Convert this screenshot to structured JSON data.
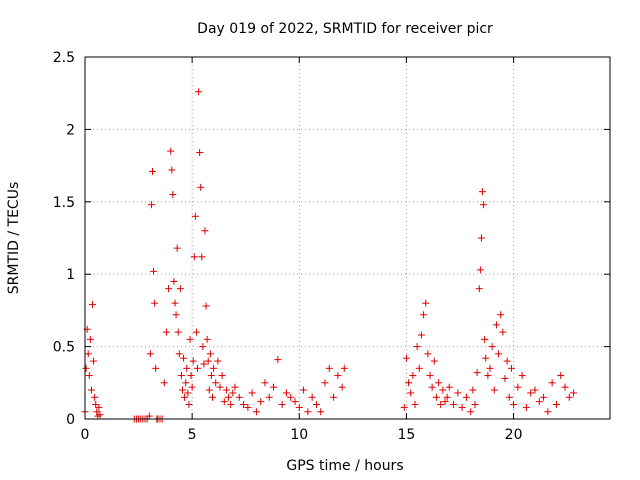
{
  "chart_data": {
    "type": "scatter",
    "title": "Day 019 of 2022, SRMTID for receiver picr",
    "xlabel": "GPS time / hours",
    "ylabel": "SRMTID / TECUs",
    "xlim": [
      0,
      24.5
    ],
    "ylim": [
      0,
      2.5
    ],
    "xticks": [
      0,
      5,
      10,
      15,
      20
    ],
    "xtick_labels": [
      "0",
      "5",
      "10",
      "15",
      "20"
    ],
    "yticks": [
      0,
      0.5,
      1,
      1.5,
      2,
      2.5
    ],
    "ytick_labels": [
      "0",
      "0.5",
      "1",
      "1.5",
      "2",
      "2.5"
    ],
    "grid": true,
    "marker": "+",
    "colors": {
      "marker": "#dd0000",
      "grid": "#a0a0a0",
      "frame": "#000000"
    },
    "series": [
      {
        "name": "SRMTID",
        "x": [
          0.0,
          0.05,
          0.1,
          0.15,
          0.2,
          0.25,
          0.3,
          0.35,
          0.4,
          0.45,
          0.5,
          0.55,
          0.6,
          0.65,
          0.7,
          2.3,
          2.4,
          2.5,
          2.6,
          2.7,
          2.8,
          2.9,
          3.0,
          3.05,
          3.1,
          3.15,
          3.2,
          3.25,
          3.3,
          3.35,
          3.4,
          3.5,
          3.6,
          3.7,
          3.8,
          3.9,
          4.0,
          4.05,
          4.1,
          4.15,
          4.2,
          4.25,
          4.3,
          4.35,
          4.4,
          4.45,
          4.5,
          4.55,
          4.6,
          4.65,
          4.7,
          4.75,
          4.8,
          4.85,
          4.9,
          4.95,
          5.0,
          5.05,
          5.1,
          5.15,
          5.2,
          5.25,
          5.3,
          5.35,
          5.4,
          5.45,
          5.5,
          5.55,
          5.6,
          5.65,
          5.7,
          5.75,
          5.8,
          5.85,
          5.9,
          5.95,
          6.0,
          6.1,
          6.2,
          6.3,
          6.4,
          6.5,
          6.6,
          6.7,
          6.8,
          6.9,
          7.0,
          7.2,
          7.4,
          7.6,
          7.8,
          8.0,
          8.2,
          8.4,
          8.6,
          8.8,
          9.0,
          9.2,
          9.4,
          9.6,
          9.8,
          10.0,
          10.2,
          10.4,
          10.6,
          10.8,
          11.0,
          11.2,
          11.4,
          11.6,
          11.8,
          12.0,
          12.1,
          14.9,
          15.0,
          15.1,
          15.2,
          15.3,
          15.4,
          15.5,
          15.6,
          15.7,
          15.8,
          15.9,
          16.0,
          16.1,
          16.2,
          16.3,
          16.4,
          16.5,
          16.6,
          16.7,
          16.8,
          16.9,
          17.0,
          17.2,
          17.4,
          17.6,
          17.8,
          18.0,
          18.1,
          18.2,
          18.3,
          18.4,
          18.45,
          18.5,
          18.55,
          18.6,
          18.65,
          18.7,
          18.8,
          18.9,
          19.0,
          19.1,
          19.2,
          19.3,
          19.4,
          19.5,
          19.6,
          19.7,
          19.8,
          19.9,
          20.0,
          20.2,
          20.4,
          20.6,
          20.8,
          21.0,
          21.2,
          21.4,
          21.6,
          21.8,
          22.0,
          22.2,
          22.4,
          22.6,
          22.8
        ],
        "y": [
          0.05,
          0.35,
          0.62,
          0.45,
          0.3,
          0.55,
          0.2,
          0.79,
          0.4,
          0.15,
          0.1,
          0.05,
          0.02,
          0.08,
          0.03,
          0.0,
          0.0,
          0.0,
          0.0,
          0.0,
          0.0,
          0.0,
          0.02,
          0.45,
          1.48,
          1.71,
          1.02,
          0.8,
          0.35,
          0.0,
          0.0,
          0.0,
          0.0,
          0.25,
          0.6,
          0.9,
          1.85,
          1.72,
          1.55,
          0.95,
          0.8,
          0.72,
          1.18,
          0.6,
          0.45,
          0.9,
          0.3,
          0.2,
          0.42,
          0.15,
          0.25,
          0.35,
          0.18,
          0.1,
          0.55,
          0.3,
          0.22,
          0.4,
          1.12,
          1.4,
          0.6,
          0.35,
          2.26,
          1.84,
          1.6,
          1.12,
          0.5,
          0.38,
          1.3,
          0.78,
          0.55,
          0.4,
          0.2,
          0.45,
          0.3,
          0.15,
          0.35,
          0.25,
          0.4,
          0.22,
          0.3,
          0.12,
          0.2,
          0.15,
          0.1,
          0.18,
          0.22,
          0.15,
          0.1,
          0.08,
          0.18,
          0.05,
          0.12,
          0.25,
          0.15,
          0.22,
          0.41,
          0.1,
          0.18,
          0.15,
          0.12,
          0.08,
          0.2,
          0.05,
          0.15,
          0.1,
          0.05,
          0.25,
          0.35,
          0.15,
          0.3,
          0.22,
          0.35,
          0.08,
          0.42,
          0.25,
          0.18,
          0.3,
          0.1,
          0.5,
          0.35,
          0.58,
          0.72,
          0.8,
          0.45,
          0.3,
          0.22,
          0.4,
          0.15,
          0.25,
          0.1,
          0.2,
          0.12,
          0.15,
          0.22,
          0.1,
          0.18,
          0.08,
          0.15,
          0.05,
          0.2,
          0.1,
          0.32,
          0.9,
          1.03,
          1.25,
          1.57,
          1.48,
          0.55,
          0.42,
          0.3,
          0.35,
          0.5,
          0.2,
          0.65,
          0.45,
          0.72,
          0.6,
          0.28,
          0.4,
          0.15,
          0.35,
          0.1,
          0.22,
          0.3,
          0.08,
          0.18,
          0.2,
          0.12,
          0.15,
          0.05,
          0.25,
          0.1,
          0.3,
          0.22,
          0.15,
          0.18
        ]
      }
    ]
  }
}
